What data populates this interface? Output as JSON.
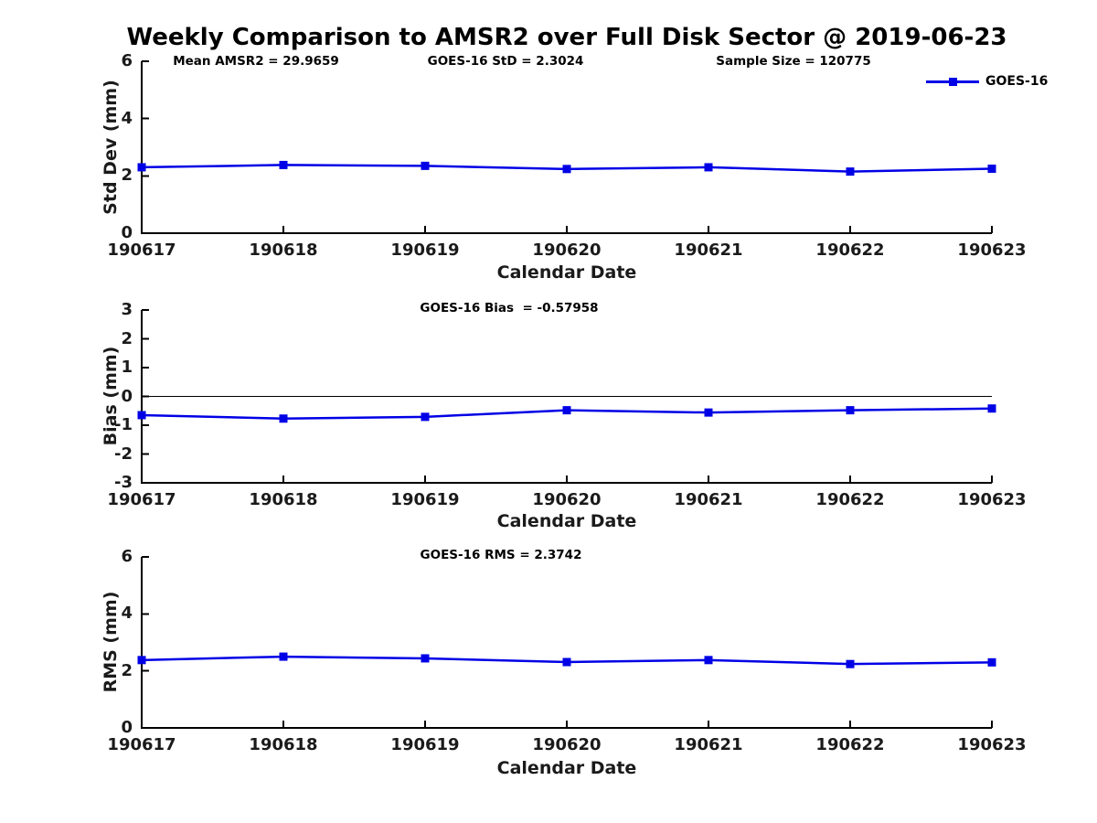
{
  "title": "Weekly Comparison to AMSR2 over Full Disk Sector @ 2019-06-23",
  "legend": {
    "label": "GOES-16",
    "marker": "square",
    "color": "#0000E6"
  },
  "colors": {
    "series_line": "#0000E6",
    "axis": "#000000",
    "background": "#ffffff"
  },
  "chart_data": [
    {
      "type": "line",
      "name": "std-dev-subplot",
      "title": "",
      "ylabel": "Std Dev (mm)",
      "xlabel": "Calendar Date",
      "categories": [
        "190617",
        "190618",
        "190619",
        "190620",
        "190621",
        "190622",
        "190623"
      ],
      "series": [
        {
          "name": "GOES-16",
          "marker": "square",
          "values": [
            2.3,
            2.38,
            2.35,
            2.24,
            2.3,
            2.15,
            2.25
          ]
        }
      ],
      "ylim": [
        0,
        6
      ],
      "yticks": [
        6,
        4,
        2,
        0
      ],
      "zero_line": false,
      "grid": false,
      "legend_position": "top-right",
      "annotations": [
        "Mean AMSR2 = 29.9659",
        "GOES-16 StD = 2.3024",
        "Sample Size = 120775"
      ]
    },
    {
      "type": "line",
      "name": "bias-subplot",
      "title": "",
      "ylabel": "Bias (mm)",
      "xlabel": "Calendar Date",
      "categories": [
        "190617",
        "190618",
        "190619",
        "190620",
        "190621",
        "190622",
        "190623"
      ],
      "series": [
        {
          "name": "GOES-16",
          "marker": "square",
          "values": [
            -0.65,
            -0.77,
            -0.71,
            -0.48,
            -0.56,
            -0.48,
            -0.42
          ]
        }
      ],
      "ylim": [
        -3,
        3
      ],
      "yticks": [
        3,
        2,
        1,
        0,
        -1,
        -2,
        -3
      ],
      "zero_line": true,
      "grid": false,
      "legend_position": "none",
      "annotations": [
        "GOES-16 Bias  = -0.57958"
      ]
    },
    {
      "type": "line",
      "name": "rms-subplot",
      "title": "",
      "ylabel": "RMS (mm)",
      "xlabel": "Calendar Date",
      "categories": [
        "190617",
        "190618",
        "190619",
        "190620",
        "190621",
        "190622",
        "190623"
      ],
      "series": [
        {
          "name": "GOES-16",
          "marker": "square",
          "values": [
            2.38,
            2.5,
            2.44,
            2.31,
            2.38,
            2.24,
            2.3
          ]
        }
      ],
      "ylim": [
        0,
        6
      ],
      "yticks": [
        6,
        4,
        2,
        0
      ],
      "zero_line": false,
      "grid": false,
      "legend_position": "none",
      "annotations": [
        "GOES-16 RMS = 2.3742"
      ]
    }
  ]
}
